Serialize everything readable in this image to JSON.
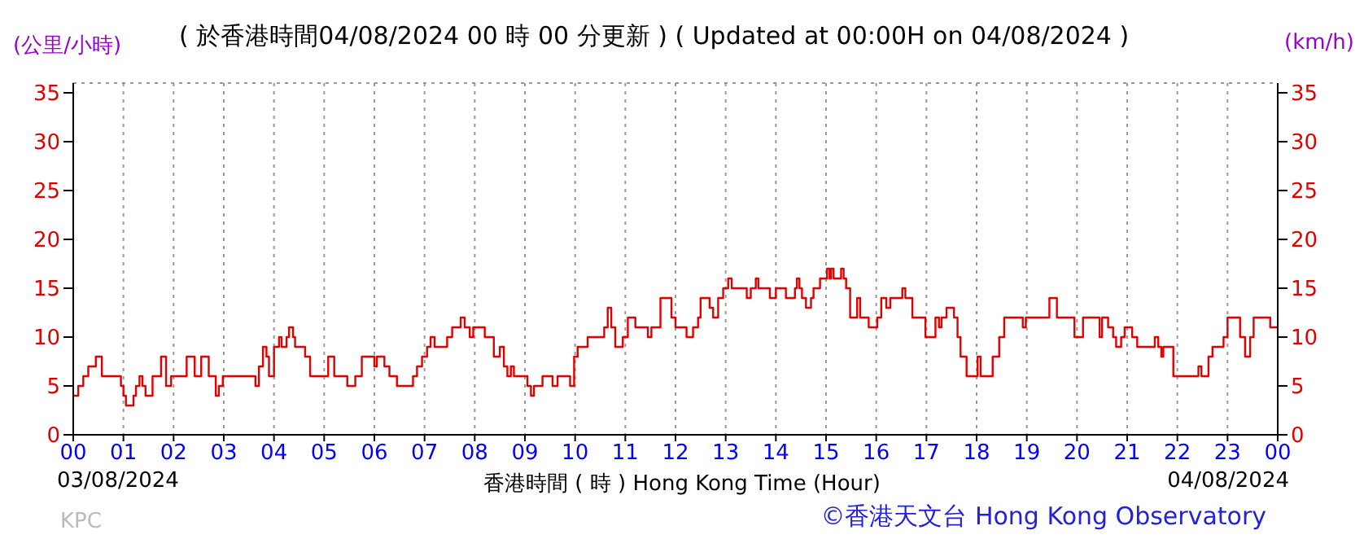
{
  "chart_data": {
    "type": "step",
    "title": "( 於香港時間04/08/2024 00 時 00 分更新 ) ( Updated at 00:00H on 04/08/2024 )",
    "ylabel": "(公里/小時)",
    "y2label": "(km/h)",
    "xlabel": "香港時間 ( 時 ) Hong Kong Time (Hour)",
    "annotations": [
      "03/08/2024",
      "04/08/2024",
      "KPC",
      "©香港天文台 Hong Kong Observatory"
    ],
    "xlim": [
      0,
      24
    ],
    "xticks": [
      {
        "value": 0,
        "label": "00"
      },
      {
        "value": 1,
        "label": "01"
      },
      {
        "value": 2,
        "label": "02"
      },
      {
        "value": 3,
        "label": "03"
      },
      {
        "value": 4,
        "label": "04"
      },
      {
        "value": 5,
        "label": "05"
      },
      {
        "value": 6,
        "label": "06"
      },
      {
        "value": 7,
        "label": "07"
      },
      {
        "value": 8,
        "label": "08"
      },
      {
        "value": 9,
        "label": "09"
      },
      {
        "value": 10,
        "label": "10"
      },
      {
        "value": 11,
        "label": "11"
      },
      {
        "value": 12,
        "label": "12"
      },
      {
        "value": 13,
        "label": "13"
      },
      {
        "value": 14,
        "label": "14"
      },
      {
        "value": 15,
        "label": "15"
      },
      {
        "value": 16,
        "label": "16"
      },
      {
        "value": 17,
        "label": "17"
      },
      {
        "value": 18,
        "label": "18"
      },
      {
        "value": 19,
        "label": "19"
      },
      {
        "value": 20,
        "label": "20"
      },
      {
        "value": 21,
        "label": "21"
      },
      {
        "value": 22,
        "label": "22"
      },
      {
        "value": 23,
        "label": "23"
      },
      {
        "value": 24,
        "label": "00"
      }
    ],
    "ylim": [
      0,
      36
    ],
    "yticks": [
      0,
      5,
      10,
      15,
      20,
      25,
      30,
      35
    ],
    "y2lim": [
      0,
      36
    ],
    "y2ticks": [
      0,
      5,
      10,
      15,
      20,
      25,
      30,
      35
    ],
    "grid": true,
    "legend": false,
    "marker": "none",
    "line_style": "solid",
    "series": [
      {
        "color": "#e00000",
        "x": [
          0,
          0.1,
          0.2,
          0.3,
          0.45,
          0.57,
          0.95,
          1.0,
          1.05,
          1.2,
          1.25,
          1.32,
          1.38,
          1.44,
          1.58,
          1.75,
          1.85,
          1.95,
          2.26,
          2.42,
          2.55,
          2.7,
          2.84,
          2.9,
          2.98,
          3.63,
          3.7,
          3.78,
          3.85,
          3.9,
          4.0,
          4.1,
          4.15,
          4.25,
          4.3,
          4.38,
          4.42,
          4.62,
          4.72,
          5.08,
          5.2,
          5.46,
          5.62,
          5.75,
          6.0,
          6.05,
          6.2,
          6.3,
          6.45,
          6.77,
          6.85,
          6.95,
          7.05,
          7.12,
          7.2,
          7.45,
          7.55,
          7.72,
          7.8,
          7.9,
          7.97,
          8.2,
          8.38,
          8.5,
          8.58,
          8.65,
          8.72,
          8.78,
          9.05,
          9.12,
          9.18,
          9.35,
          9.55,
          9.65,
          9.9,
          9.98,
          10.05,
          10.25,
          10.58,
          10.65,
          10.72,
          10.8,
          10.95,
          11.05,
          11.2,
          11.45,
          11.52,
          11.7,
          11.92,
          12.0,
          12.22,
          12.35,
          12.45,
          12.5,
          12.68,
          12.75,
          12.85,
          12.95,
          13.05,
          13.12,
          13.42,
          13.5,
          13.6,
          13.65,
          13.88,
          14.0,
          14.2,
          14.38,
          14.42,
          14.47,
          14.52,
          14.6,
          14.7,
          14.75,
          14.88,
          15.02,
          15.07,
          15.1,
          15.15,
          15.3,
          15.35,
          15.4,
          15.48,
          15.62,
          15.68,
          15.85,
          16.02,
          16.1,
          16.2,
          16.28,
          16.52,
          16.58,
          16.72,
          16.98,
          17.18,
          17.25,
          17.3,
          17.4,
          17.55,
          17.62,
          17.68,
          17.8,
          18.02,
          18.08,
          18.32,
          18.45,
          18.55,
          18.92,
          18.98,
          19.45,
          19.6,
          19.95,
          20.12,
          20.45,
          20.5,
          20.62,
          20.72,
          20.78,
          20.88,
          20.95,
          21.1,
          21.2,
          21.55,
          21.62,
          21.68,
          21.72,
          21.92,
          22.42,
          22.48,
          22.62,
          22.7,
          22.92,
          23.0,
          23.25,
          23.35,
          23.45,
          23.52,
          23.85,
          24
        ],
        "values": [
          4,
          5,
          6,
          7,
          8,
          6,
          5,
          4,
          3,
          4,
          5,
          6,
          5,
          4,
          6,
          8,
          5,
          6,
          8,
          6,
          8,
          6,
          4,
          5,
          6,
          5,
          7,
          9,
          8,
          6,
          9,
          10,
          9,
          10,
          11,
          10,
          9,
          8,
          6,
          8,
          6,
          5,
          6,
          8,
          7,
          8,
          7,
          6,
          5,
          6,
          7,
          8,
          9,
          10,
          9,
          10,
          11,
          12,
          11,
          10,
          11,
          10,
          8,
          9,
          7,
          6,
          7,
          6,
          5,
          4,
          5,
          6,
          5,
          6,
          5,
          8,
          9,
          10,
          11,
          13,
          11,
          9,
          10,
          12,
          11,
          10,
          11,
          14,
          12,
          11,
          10,
          11,
          12,
          14,
          13,
          12,
          14,
          15,
          16,
          15,
          14,
          15,
          16,
          15,
          14,
          15,
          14,
          15,
          16,
          15,
          14,
          13,
          14,
          15,
          16,
          17,
          16,
          17,
          16,
          17,
          16,
          15,
          12,
          14,
          12,
          11,
          12,
          14,
          13,
          14,
          15,
          14,
          12,
          10,
          12,
          11,
          12,
          13,
          12,
          10,
          8,
          6,
          8,
          6,
          8,
          10,
          12,
          11,
          12,
          14,
          12,
          10,
          12,
          10,
          12,
          11,
          10,
          9,
          10,
          11,
          10,
          9,
          10,
          9,
          8,
          9,
          6,
          7,
          6,
          8,
          9,
          10,
          12,
          10,
          8,
          10,
          12,
          11,
          11
        ]
      }
    ]
  }
}
